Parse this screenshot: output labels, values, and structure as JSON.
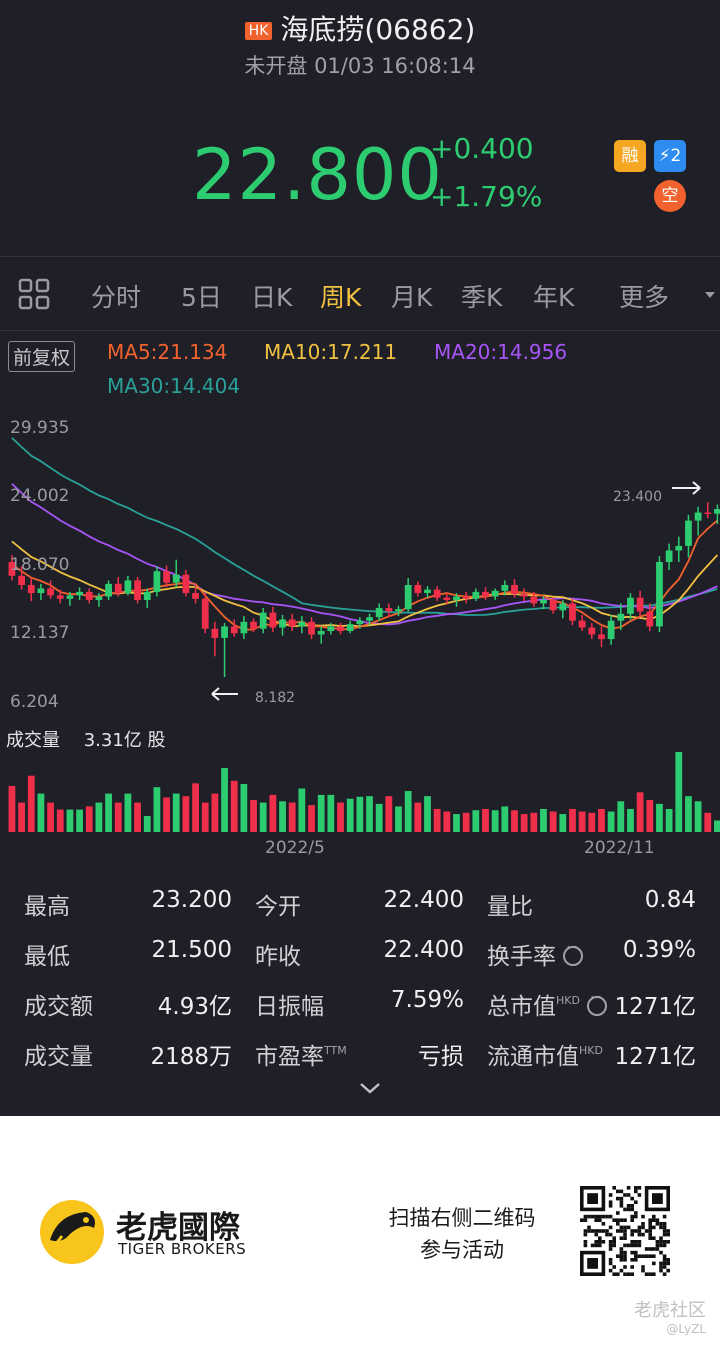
{
  "header": {
    "market_badge": "HK",
    "title": "海底捞(06862)",
    "status": "未开盘 01/03 16:08:14"
  },
  "quote": {
    "price": "22.800",
    "change": "+0.400",
    "change_pct": "+1.79%",
    "tags": [
      {
        "label": "融",
        "color": "#f5a623"
      },
      {
        "label": "⚡2",
        "color": "#2e8bf0"
      },
      {
        "label": "空",
        "color": "#f2622e"
      }
    ]
  },
  "tabs": {
    "grid_icon": "grid-icon",
    "items": [
      "分时",
      "5日",
      "日K",
      "周K",
      "月K",
      "季K",
      "年K",
      "更多"
    ],
    "active": "周K"
  },
  "chart_header": {
    "adjust_button": "前复权",
    "ma5": "MA5:21.134",
    "ma10": "MA10:17.211",
    "ma20": "MA20:14.956",
    "ma30": "MA30:14.404",
    "colors": {
      "ma5": "#f2622e",
      "ma10": "#f0c040",
      "ma20": "#a855f7",
      "ma30": "#2aa198"
    }
  },
  "chart_data": {
    "type": "candlestick",
    "y_ticks": [
      "29.935",
      "24.002",
      "18.070",
      "12.137",
      "6.204"
    ],
    "ylim": [
      6.204,
      29.935
    ],
    "high_label": "23.400",
    "low_label": "8.182",
    "x_ticks": [
      "2022/5",
      "2022/11"
    ],
    "volume_label": "成交量",
    "volume_value": "3.31亿 股",
    "up_color": "#2ecc71",
    "down_color": "#f0304a",
    "candles": [
      [
        18.2,
        18.8,
        16.6,
        17.0
      ],
      [
        17.0,
        17.8,
        15.8,
        16.2
      ],
      [
        16.2,
        16.8,
        14.8,
        15.5
      ],
      [
        15.5,
        16.3,
        14.9,
        15.9
      ],
      [
        15.9,
        16.6,
        15.0,
        15.3
      ],
      [
        15.3,
        15.8,
        14.6,
        15.0
      ],
      [
        15.0,
        15.6,
        14.4,
        15.3
      ],
      [
        15.3,
        16.0,
        14.9,
        15.6
      ],
      [
        15.6,
        15.9,
        14.6,
        14.9
      ],
      [
        14.9,
        15.5,
        14.3,
        15.2
      ],
      [
        15.2,
        16.6,
        14.9,
        16.3
      ],
      [
        16.3,
        16.9,
        15.2,
        15.5
      ],
      [
        15.5,
        17.0,
        15.3,
        16.6
      ],
      [
        16.6,
        16.9,
        14.6,
        14.9
      ],
      [
        14.9,
        15.9,
        14.2,
        15.6
      ],
      [
        15.6,
        17.8,
        15.2,
        17.4
      ],
      [
        17.4,
        17.9,
        16.0,
        16.4
      ],
      [
        16.4,
        18.4,
        16.0,
        17.1
      ],
      [
        17.1,
        17.5,
        15.2,
        15.5
      ],
      [
        15.5,
        16.1,
        14.6,
        15.0
      ],
      [
        15.0,
        15.5,
        12.0,
        12.4
      ],
      [
        12.4,
        13.0,
        10.0,
        11.6
      ],
      [
        11.6,
        12.9,
        8.2,
        12.6
      ],
      [
        12.6,
        13.2,
        11.7,
        12.0
      ],
      [
        12.0,
        13.5,
        11.5,
        13.0
      ],
      [
        13.0,
        13.3,
        12.1,
        12.4
      ],
      [
        12.4,
        14.2,
        12.0,
        13.8
      ],
      [
        13.8,
        14.3,
        12.1,
        12.5
      ],
      [
        12.5,
        13.6,
        11.8,
        13.2
      ],
      [
        13.2,
        13.7,
        12.2,
        12.6
      ],
      [
        12.6,
        13.5,
        12.0,
        13.0
      ],
      [
        13.0,
        13.4,
        11.5,
        11.9
      ],
      [
        11.9,
        12.6,
        11.1,
        12.2
      ],
      [
        12.2,
        12.9,
        11.9,
        12.6
      ],
      [
        12.6,
        12.9,
        11.9,
        12.2
      ],
      [
        12.2,
        13.1,
        12.0,
        12.8
      ],
      [
        12.8,
        13.4,
        12.4,
        13.1
      ],
      [
        13.1,
        13.7,
        12.7,
        13.4
      ],
      [
        13.4,
        14.6,
        13.1,
        14.2
      ],
      [
        14.2,
        14.6,
        13.4,
        13.9
      ],
      [
        13.9,
        14.4,
        13.5,
        14.1
      ],
      [
        14.1,
        16.8,
        13.9,
        16.2
      ],
      [
        16.2,
        16.5,
        15.2,
        15.5
      ],
      [
        15.5,
        16.1,
        15.1,
        15.8
      ],
      [
        15.8,
        16.1,
        14.8,
        15.1
      ],
      [
        15.1,
        15.5,
        14.5,
        14.9
      ],
      [
        14.9,
        15.5,
        14.3,
        15.2
      ],
      [
        15.2,
        15.6,
        14.6,
        15.0
      ],
      [
        15.0,
        15.9,
        14.8,
        15.6
      ],
      [
        15.6,
        16.0,
        14.9,
        15.2
      ],
      [
        15.2,
        15.9,
        14.9,
        15.7
      ],
      [
        15.7,
        16.6,
        15.3,
        16.2
      ],
      [
        16.2,
        16.7,
        15.1,
        15.4
      ],
      [
        15.4,
        15.9,
        14.8,
        15.2
      ],
      [
        15.2,
        15.6,
        14.3,
        14.6
      ],
      [
        14.6,
        15.2,
        14.1,
        14.9
      ],
      [
        14.9,
        15.1,
        13.7,
        14.0
      ],
      [
        14.0,
        14.9,
        13.3,
        14.6
      ],
      [
        14.6,
        15.0,
        12.7,
        13.1
      ],
      [
        13.1,
        13.6,
        12.2,
        12.5
      ],
      [
        12.5,
        12.9,
        11.5,
        11.9
      ],
      [
        11.9,
        12.6,
        10.8,
        11.5
      ],
      [
        11.5,
        13.6,
        11.0,
        13.1
      ],
      [
        13.1,
        14.6,
        12.3,
        13.7
      ],
      [
        13.7,
        15.5,
        13.2,
        15.1
      ],
      [
        15.1,
        15.7,
        13.5,
        13.9
      ],
      [
        13.9,
        14.6,
        12.2,
        12.6
      ],
      [
        12.6,
        18.7,
        12.1,
        18.2
      ],
      [
        18.2,
        19.8,
        17.5,
        19.2
      ],
      [
        19.2,
        20.4,
        18.2,
        19.6
      ],
      [
        19.6,
        22.3,
        18.6,
        21.8
      ],
      [
        21.8,
        23.0,
        20.5,
        22.5
      ],
      [
        22.5,
        23.4,
        22.0,
        22.4
      ],
      [
        22.4,
        23.2,
        21.5,
        22.8
      ]
    ],
    "volumes": [
      0.72,
      0.46,
      0.88,
      0.6,
      0.46,
      0.35,
      0.35,
      0.35,
      0.4,
      0.46,
      0.6,
      0.46,
      0.6,
      0.46,
      0.25,
      0.7,
      0.54,
      0.6,
      0.56,
      0.76,
      0.46,
      0.6,
      1.0,
      0.8,
      0.75,
      0.5,
      0.46,
      0.58,
      0.48,
      0.46,
      0.68,
      0.42,
      0.58,
      0.58,
      0.46,
      0.52,
      0.55,
      0.56,
      0.44,
      0.56,
      0.4,
      0.64,
      0.46,
      0.56,
      0.36,
      0.32,
      0.28,
      0.3,
      0.34,
      0.36,
      0.34,
      0.4,
      0.34,
      0.28,
      0.3,
      0.36,
      0.32,
      0.28,
      0.36,
      0.32,
      0.3,
      0.36,
      0.32,
      0.48,
      0.36,
      0.62,
      0.5,
      0.44,
      0.36,
      1.25,
      0.56,
      0.48,
      0.3,
      0.18
    ]
  },
  "stats": [
    {
      "label": "最高",
      "value": "23.200"
    },
    {
      "label": "今开",
      "value": "22.400"
    },
    {
      "label": "量比",
      "value": "0.84"
    },
    {
      "label": "最低",
      "value": "21.500"
    },
    {
      "label": "昨收",
      "value": "22.400"
    },
    {
      "label": "换手率",
      "value": "0.39%"
    },
    {
      "label": "成交额",
      "value": "4.93亿"
    },
    {
      "label": "日振幅",
      "value": "7.59%"
    },
    {
      "label": "总市值",
      "sup": "HKD",
      "value": "1271亿"
    },
    {
      "label": "成交量",
      "value": "2188万"
    },
    {
      "label": "市盈率",
      "sup": "TTM",
      "value": "亏损"
    },
    {
      "label": "流通市值",
      "sup": "HKD",
      "value": "1271亿"
    }
  ],
  "footer": {
    "brand_cn": "老虎國際",
    "brand_en": "TIGER BROKERS",
    "scan_line1": "扫描右侧二维码",
    "scan_line2": "参与活动",
    "watermark": "老虎社区",
    "watermark_user": "@LyZL"
  }
}
